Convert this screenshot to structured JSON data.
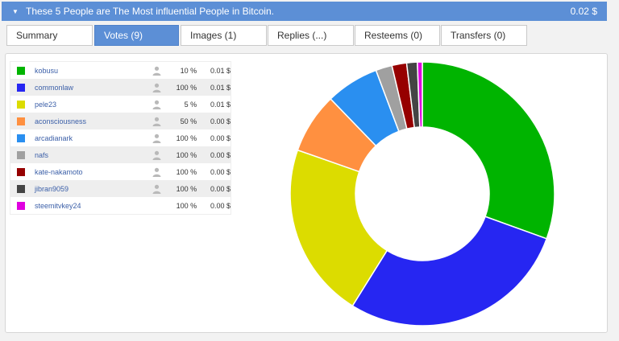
{
  "header": {
    "title": "These 5 People are The Most influential People in Bitcoin.",
    "amount": "0.02 $"
  },
  "tabs": [
    {
      "label": "Summary"
    },
    {
      "label": "Votes (9)"
    },
    {
      "label": "Images (1)"
    },
    {
      "label": "Replies (...)"
    },
    {
      "label": "Resteems (0)"
    },
    {
      "label": "Transfers (0)"
    }
  ],
  "active_tab": 1,
  "icons": {
    "collapse": "chevron-down-icon",
    "voter": "person-icon"
  },
  "votes": [
    {
      "name": "kobusu",
      "percent": "10 %",
      "value": "0.01 $",
      "color": "#00b400",
      "has_icon": true
    },
    {
      "name": "commonlaw",
      "percent": "100 %",
      "value": "0.01 $",
      "color": "#2626f2",
      "has_icon": true
    },
    {
      "name": "pele23",
      "percent": "5 %",
      "value": "0.01 $",
      "color": "#dcdc00",
      "has_icon": true
    },
    {
      "name": "aconsciousness",
      "percent": "50 %",
      "value": "0.00 $",
      "color": "#ff9040",
      "has_icon": true
    },
    {
      "name": "arcadianark",
      "percent": "100 %",
      "value": "0.00 $",
      "color": "#2a8ff0",
      "has_icon": true
    },
    {
      "name": "nafs",
      "percent": "100 %",
      "value": "0.00 $",
      "color": "#a0a0a0",
      "has_icon": true
    },
    {
      "name": "kate-nakamoto",
      "percent": "100 %",
      "value": "0.00 $",
      "color": "#960000",
      "has_icon": true
    },
    {
      "name": "jibran9059",
      "percent": "100 %",
      "value": "0.00 $",
      "color": "#444444",
      "has_icon": true
    },
    {
      "name": "steemitvkey24",
      "percent": "100 %",
      "value": "0.00 $",
      "color": "#e000e0",
      "has_icon": false
    }
  ],
  "chart_data": {
    "type": "pie",
    "donut": true,
    "categories": [
      "kobusu",
      "commonlaw",
      "pele23",
      "aconsciousness",
      "arcadianark",
      "nafs",
      "kate-nakamoto",
      "jibran9059",
      "steemitvkey24"
    ],
    "values": [
      30.5,
      28.3,
      21.5,
      7.4,
      6.5,
      2.0,
      1.8,
      1.3,
      0.6
    ],
    "colors": [
      "#00b400",
      "#2626f2",
      "#dcdc00",
      "#ff9040",
      "#2a8ff0",
      "#a0a0a0",
      "#960000",
      "#444444",
      "#e000e0"
    ]
  }
}
